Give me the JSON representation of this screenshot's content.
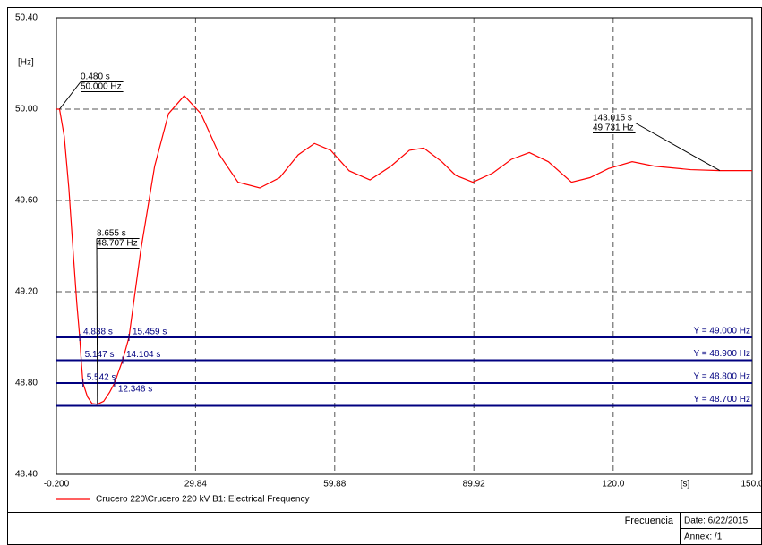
{
  "chart_data": {
    "type": "line",
    "y_unit_label": "[Hz]",
    "x_unit_label": "[s]",
    "xlim": [
      -0.2,
      150.0
    ],
    "xticks": [
      {
        "value": -0.2,
        "label": "-0.200"
      },
      29.84,
      59.88,
      89.92,
      {
        "value": 120.0,
        "label": "120.0"
      },
      {
        "value": 150.0,
        "label": "150.0"
      }
    ],
    "ylim": [
      48.4,
      50.4
    ],
    "yticks": [
      {
        "value": 50.4,
        "label": "50.40"
      },
      {
        "value": 50.0,
        "label": "50.00"
      },
      {
        "value": 49.6,
        "label": "49.60"
      },
      {
        "value": 49.2,
        "label": "49.20"
      },
      {
        "value": 48.8,
        "label": "48.80"
      },
      {
        "value": 48.4,
        "label": "48.40"
      }
    ],
    "grid": true,
    "x": [
      -0.2,
      0.48,
      1.5,
      2.5,
      3.5,
      4.2,
      4.838,
      5.147,
      5.542,
      6.5,
      7.5,
      8.655,
      10,
      11.3,
      12.348,
      14.104,
      15.459,
      18,
      21,
      24,
      27.4,
      31,
      35,
      39,
      43.7,
      48,
      52,
      55.5,
      59,
      63,
      67.5,
      72,
      76,
      79.1,
      83,
      86,
      89.7,
      94,
      98,
      101.9,
      106,
      111,
      115,
      119,
      124.1,
      129,
      136.7,
      143.015,
      150
    ],
    "series": [
      {
        "name": "Crucero 220\\Crucero 220 kV B1: Electrical Frequency",
        "color": "#ff0000",
        "values": [
          50.0,
          50.0,
          49.88,
          49.65,
          49.35,
          49.15,
          49.0,
          48.9,
          48.8,
          48.74,
          48.71,
          48.707,
          48.72,
          48.76,
          48.8,
          48.9,
          49.0,
          49.38,
          49.75,
          49.98,
          50.059,
          49.98,
          49.8,
          49.68,
          49.655,
          49.7,
          49.8,
          49.85,
          49.82,
          49.73,
          49.69,
          49.75,
          49.82,
          49.83,
          49.77,
          49.71,
          49.68,
          49.72,
          49.78,
          49.81,
          49.77,
          49.68,
          49.7,
          49.74,
          49.77,
          49.75,
          49.735,
          49.731,
          49.731
        ]
      }
    ],
    "reference_lines": [
      {
        "value": 49.0,
        "label": "Y = 49.000 Hz"
      },
      {
        "value": 48.9,
        "label": "Y = 48.900 Hz"
      },
      {
        "value": 48.8,
        "label": "Y = 48.800 Hz"
      },
      {
        "value": 48.7,
        "label": "Y = 48.700 Hz"
      }
    ],
    "reference_color": "#000080",
    "annotations": [
      {
        "x": 0.48,
        "y": 50.0,
        "x_label": "0.480 s",
        "y_label": "50.000 Hz"
      },
      {
        "x": 8.655,
        "y": 48.707,
        "x_label": "8.655 s",
        "y_label": "48.707 Hz"
      },
      {
        "x": 143.015,
        "y": 49.731,
        "x_label": "143.015 s",
        "y_label": "49.731 Hz"
      }
    ],
    "crossings": [
      {
        "x": 4.838,
        "y": 49.0,
        "label": "4.838 s"
      },
      {
        "x": 15.459,
        "y": 49.0,
        "label": "15.459 s"
      },
      {
        "x": 5.147,
        "y": 48.9,
        "label": "5.147 s"
      },
      {
        "x": 14.104,
        "y": 48.9,
        "label": "14.104 s"
      },
      {
        "x": 12.348,
        "y": 48.8,
        "label": "12.348 s"
      },
      {
        "x": 5.542,
        "y": 48.8,
        "label": "5.542 s"
      }
    ]
  },
  "footer": {
    "title": "Frecuencia",
    "date": "Date: 6/22/2015",
    "annex": "Annex: /1"
  }
}
